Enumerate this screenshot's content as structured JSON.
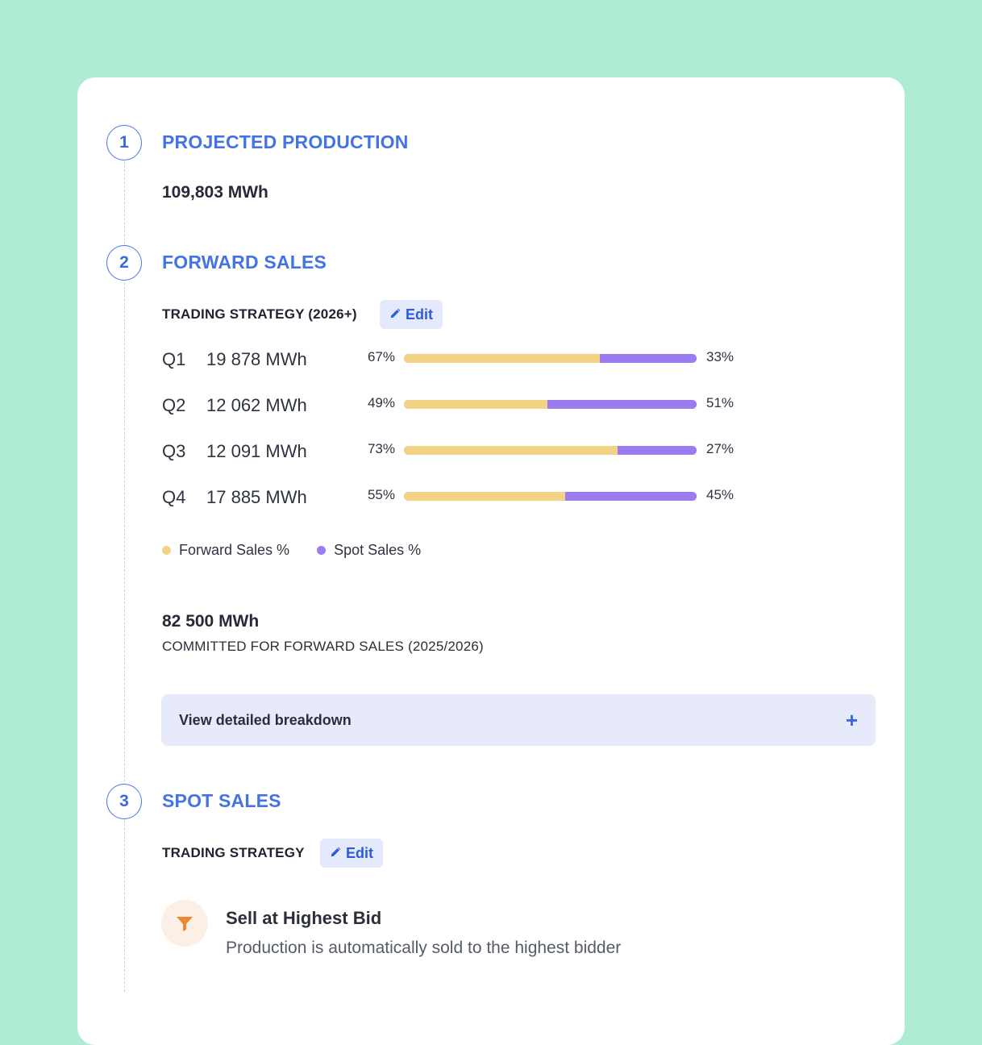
{
  "steps": [
    {
      "number": "1",
      "title": "PROJECTED PRODUCTION"
    },
    {
      "number": "2",
      "title": "FORWARD SALES"
    },
    {
      "number": "3",
      "title": "SPOT SALES"
    }
  ],
  "production": {
    "value": "109,803 MWh"
  },
  "forward": {
    "strategy_label": "TRADING STRATEGY (2026+)",
    "edit_label": "Edit",
    "quarters": [
      {
        "label": "Q1",
        "mwh": "19 878 MWh",
        "forward_pct_text": "67%",
        "spot_pct_text": "33%",
        "forward_pct": 67
      },
      {
        "label": "Q2",
        "mwh": "12 062 MWh",
        "forward_pct_text": "49%",
        "spot_pct_text": "51%",
        "forward_pct": 49
      },
      {
        "label": "Q3",
        "mwh": "12 091 MWh",
        "forward_pct_text": "73%",
        "spot_pct_text": "27%",
        "forward_pct": 73
      },
      {
        "label": "Q4",
        "mwh": "17 885 MWh",
        "forward_pct_text": "55%",
        "spot_pct_text": "45%",
        "forward_pct": 55
      }
    ],
    "legend": {
      "forward": "Forward Sales %",
      "spot": "Spot Sales %"
    },
    "committed_value": "82 500 MWh",
    "committed_label": "COMMITTED FOR FORWARD SALES (2025/2026)",
    "breakdown_label": "View detailed breakdown",
    "breakdown_icon": "+"
  },
  "spot": {
    "strategy_label": "TRADING STRATEGY",
    "edit_label": "Edit",
    "option_title": "Sell at Highest Bid",
    "option_desc": "Production is automatically sold to the highest bidder",
    "option_icon": "funnel-icon"
  },
  "colors": {
    "accent": "#4474e4",
    "forward": "#f2d383",
    "spot": "#9a7cf0",
    "background": "#aeecd4"
  }
}
